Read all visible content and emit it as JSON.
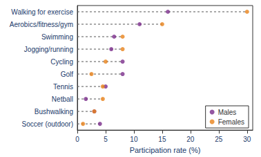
{
  "chart_data": {
    "type": "scatter",
    "orientation": "horizontal",
    "categories": [
      "Walking for exercise",
      "Aerobics/fitness/gym",
      "Swimming",
      "Jogging/running",
      "Cycling",
      "Golf",
      "Tennis",
      "Netball",
      "Bushwalking",
      "Soccer (outdoor)"
    ],
    "series": [
      {
        "name": "Males",
        "color": "#7B2D8B",
        "values": [
          16,
          11,
          6.5,
          6.0,
          8.0,
          8.0,
          5.0,
          1.5,
          3.0,
          4.0
        ]
      },
      {
        "name": "Females",
        "color": "#E8821A",
        "values": [
          30,
          15,
          8.0,
          8.0,
          5.0,
          2.5,
          4.5,
          4.5,
          3.0,
          1.0
        ]
      }
    ],
    "xlabel": "Participation rate (%)",
    "xlim": [
      0,
      31
    ],
    "xticks": [
      0,
      5,
      10,
      15,
      20,
      25,
      30
    ],
    "grid": false,
    "legend": "lower right"
  }
}
